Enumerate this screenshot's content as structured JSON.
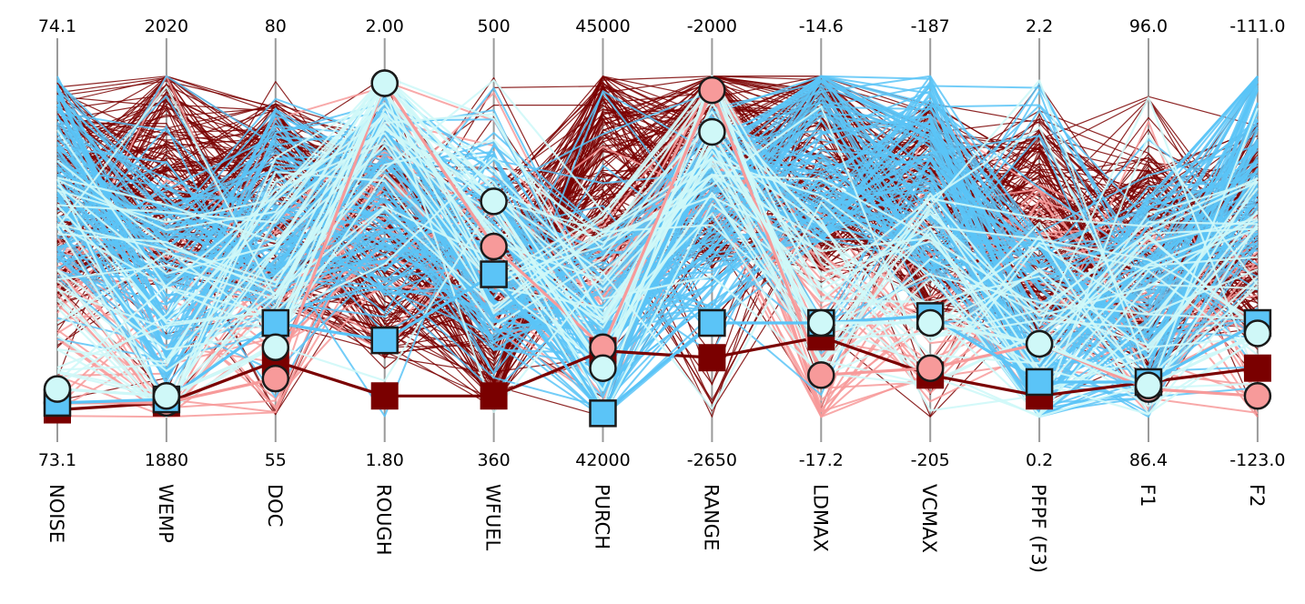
{
  "chart_data": {
    "type": "parallel-coordinates",
    "axes": [
      {
        "name": "NOISE",
        "max": "74.1",
        "min": "73.1"
      },
      {
        "name": "WEMP",
        "max": "2020",
        "min": "1880"
      },
      {
        "name": "DOC",
        "max": "80",
        "min": "55"
      },
      {
        "name": "ROUGH",
        "max": "2.00",
        "min": "1.80"
      },
      {
        "name": "WFUEL",
        "max": "500",
        "min": "360"
      },
      {
        "name": "PURCH",
        "max": "45000",
        "min": "42000"
      },
      {
        "name": "RANGE",
        "max": "-2000",
        "min": "-2650"
      },
      {
        "name": "LDMAX",
        "max": "-14.6",
        "min": "-17.2"
      },
      {
        "name": "VCMAX",
        "max": "-187",
        "min": "-205"
      },
      {
        "name": "PFPF (F3)",
        "max": "2.2",
        "min": "0.2"
      },
      {
        "name": "F1",
        "max": "96.0",
        "min": "86.4"
      },
      {
        "name": "F2",
        "max": "-111.0",
        "min": "-123.0"
      }
    ],
    "colors": {
      "dark_red": "#7a0000",
      "light_red": "#f79a9a",
      "blue": "#5bc4f7",
      "light_cyan": "#cff8f8"
    },
    "highlighted": [
      {
        "color": "dark_red",
        "marker": "square",
        "norm_values": [
          0.03,
          0.05,
          0.17,
          0.07,
          0.07,
          0.2,
          0.18,
          0.24,
          0.13,
          0.07,
          0.11,
          0.15
        ]
      },
      {
        "color": "light_red",
        "marker": "circle",
        "norm_values": [
          0.05,
          0.05,
          0.12,
          0.97,
          0.5,
          0.21,
          0.95,
          0.13,
          0.15,
          0.22,
          0.09,
          0.07
        ]
      },
      {
        "color": "blue",
        "marker": "square",
        "norm_values": [
          0.05,
          0.06,
          0.28,
          0.23,
          0.42,
          0.02,
          0.28,
          0.28,
          0.3,
          0.11,
          0.11,
          0.28
        ]
      },
      {
        "color": "light_cyan",
        "marker": "circle",
        "norm_values": [
          0.09,
          0.07,
          0.21,
          0.97,
          0.63,
          0.15,
          0.83,
          0.28,
          0.28,
          0.22,
          0.1,
          0.25
        ]
      }
    ]
  }
}
